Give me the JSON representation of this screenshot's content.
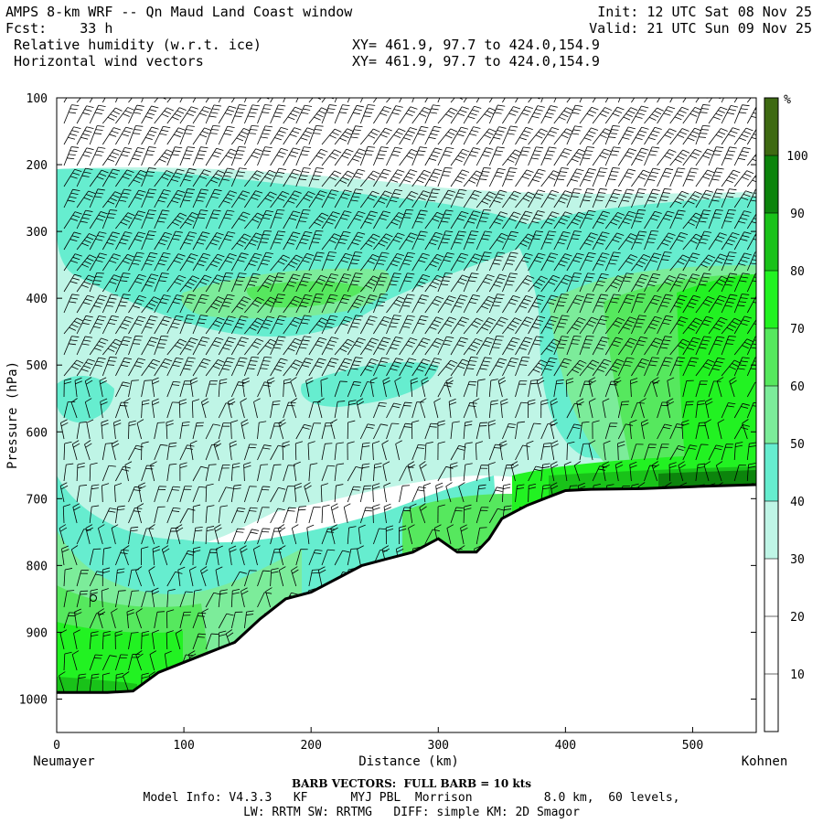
{
  "header": {
    "title": "AMPS 8-km WRF -- Qn Maud Land Coast window",
    "fcst_label": "Fcst:",
    "fcst_value": "33 h",
    "field1": "Relative humidity (w.r.t. ice)",
    "field2": "Horizontal wind vectors",
    "xy1": "XY= 461.9, 97.7 to 424.0,154.9",
    "xy2": "XY= 461.9, 97.7 to 424.0,154.9",
    "init": "Init: 12 UTC Sat 08 Nov 25",
    "valid": "Valid: 21 UTC Sun 09 Nov 25"
  },
  "footer": {
    "barb_note": "BARB VECTORS:  FULL BARB = 10 kts",
    "model_info": "Model Info: V4.3.3   KF      MYJ PBL  Morrison          8.0 km,  60 levels,",
    "model_info2": "LW: RRTM SW: RRTMG   DIFF: simple KM: 2D Smagor"
  },
  "colors": {
    "c_30_40": "#bff5e6",
    "c_40_50": "#66edcf",
    "c_50_60": "#7cec9a",
    "c_60_70": "#56e85e",
    "c_70_80": "#22f222",
    "c_80_90": "#19c219",
    "c_90_100": "#0c840c",
    "c_100_plus": "#3e6a12",
    "terrain_line": "#000000"
  },
  "chart_data": {
    "type": "heatmap",
    "title": "Relative humidity (w.r.t. ice)",
    "xlabel": "Distance (km)",
    "ylabel": "Pressure (hPa)",
    "xlim": [
      0,
      550
    ],
    "ylim": [
      1050,
      100
    ],
    "x_ticks": [
      "0",
      "100",
      "200",
      "300",
      "400",
      "500"
    ],
    "y_ticks": [
      "100",
      "200",
      "300",
      "400",
      "500",
      "600",
      "700",
      "800",
      "900",
      "1000"
    ],
    "x_start_label": "Neumayer",
    "x_end_label": "Kohnen",
    "colorbar": {
      "unit": "%",
      "labels": [
        "10",
        "20",
        "30",
        "40",
        "50",
        "60",
        "70",
        "80",
        "90",
        "100"
      ],
      "levels": [
        0,
        10,
        20,
        30,
        40,
        50,
        60,
        70,
        80,
        90,
        100,
        110
      ]
    },
    "terrain_surface": {
      "x_km": [
        0,
        20,
        40,
        60,
        80,
        100,
        120,
        140,
        160,
        180,
        200,
        220,
        240,
        260,
        280,
        300,
        315,
        330,
        340,
        350,
        370,
        390,
        400,
        420,
        460,
        500,
        550
      ],
      "p_hpa": [
        990,
        990,
        990,
        988,
        960,
        945,
        930,
        915,
        880,
        850,
        840,
        820,
        800,
        790,
        780,
        760,
        780,
        780,
        760,
        730,
        710,
        695,
        688,
        686,
        685,
        682,
        679
      ]
    }
  }
}
